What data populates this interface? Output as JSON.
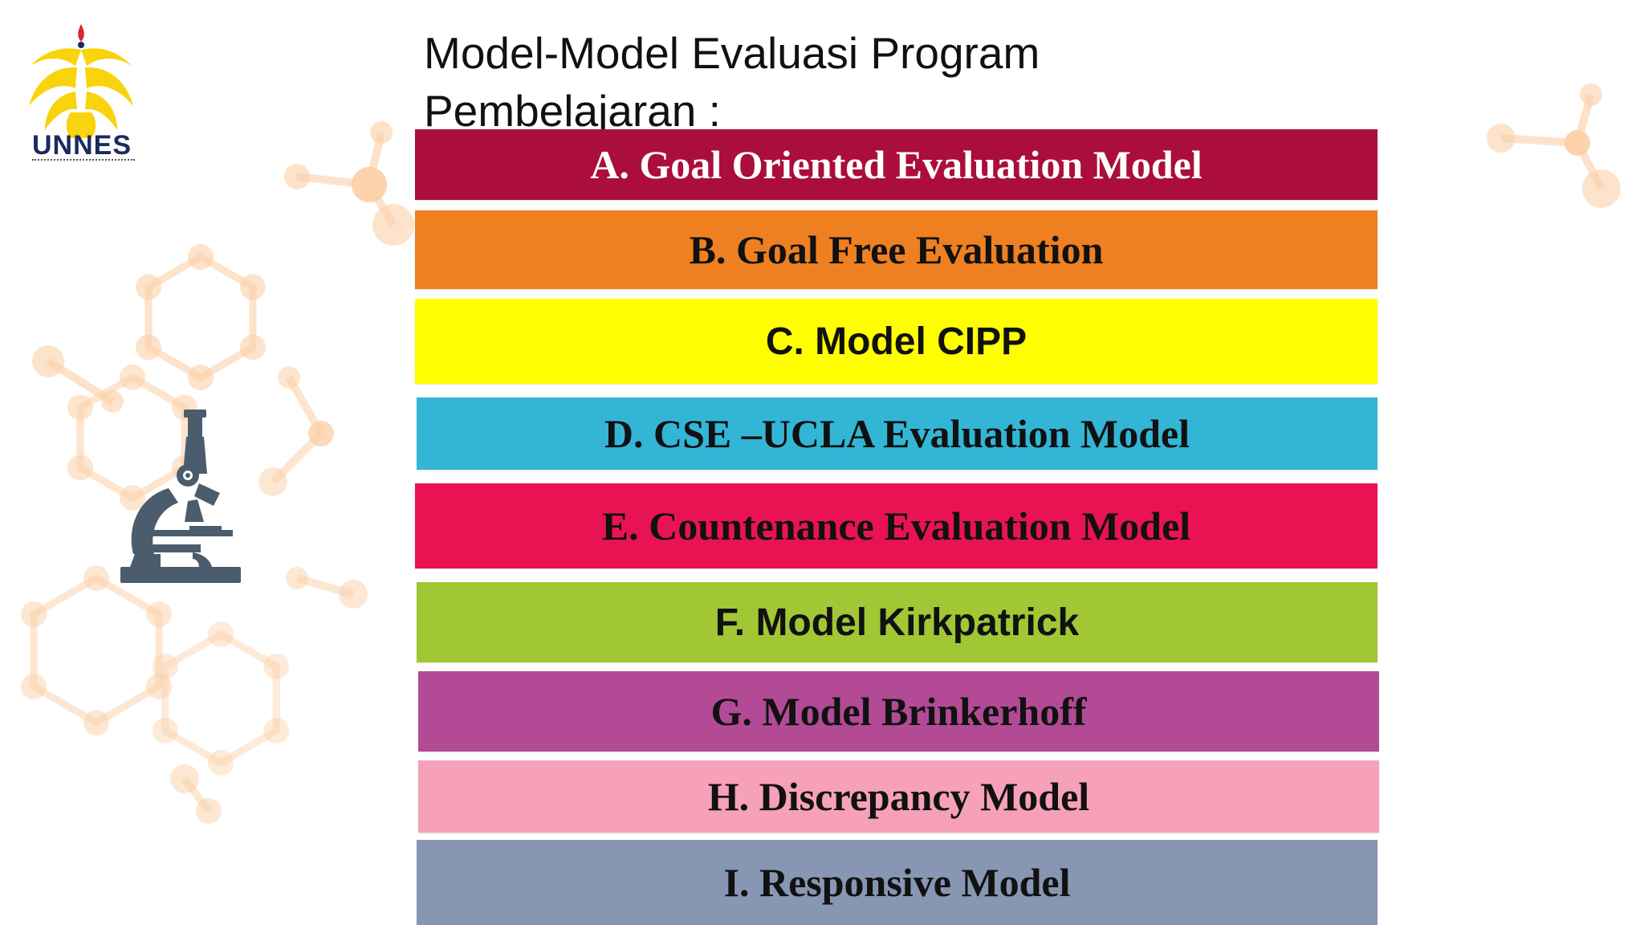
{
  "title_lines": [
    "Model-Model Evaluasi Program",
    "Pembelajaran :"
  ],
  "logo": {
    "text": "UNNES",
    "color": "#f8d30e",
    "text_color": "#1b2a5e"
  },
  "items": [
    {
      "label": "A. Goal Oriented Evaluation Model",
      "color": "#ab0e3c",
      "text_color": "#ffffff"
    },
    {
      "label": "B. Goal Free Evaluation",
      "color": "#ee8021",
      "text_color": "#111111"
    },
    {
      "label": "C. Model CIPP",
      "color": "#ffff02",
      "text_color": "#111111"
    },
    {
      "label": "D. CSE –UCLA Evaluation Model",
      "color": "#33b6d6",
      "text_color": "#111111"
    },
    {
      "label": "E. Countenance Evaluation Model",
      "color": "#e91354",
      "text_color": "#111111"
    },
    {
      "label": "F. Model Kirkpatrick",
      "color": "#a1c735",
      "text_color": "#111111"
    },
    {
      "label": "G. Model Brinkerhoff",
      "color": "#b24a95",
      "text_color": "#111111"
    },
    {
      "label": "H. Discrepancy Model",
      "color": "#f6a1b9",
      "text_color": "#111111"
    },
    {
      "label": "I. Responsive Model",
      "color": "#8796b2",
      "text_color": "#111111"
    }
  ],
  "decor_color": "#fbd0a8",
  "microscope_color": "#4b5d6d"
}
